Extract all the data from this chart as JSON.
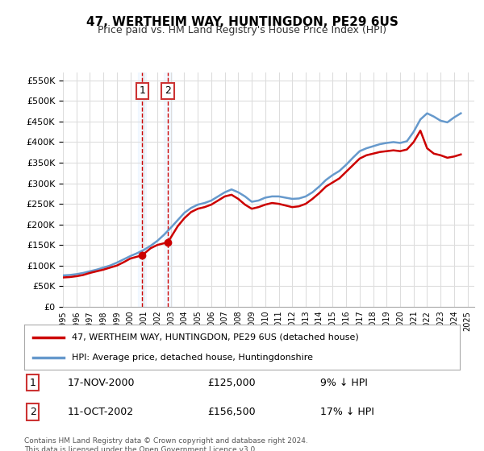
{
  "title": "47, WERTHEIM WAY, HUNTINGDON, PE29 6US",
  "subtitle": "Price paid vs. HM Land Registry's House Price Index (HPI)",
  "ylabel_ticks": [
    0,
    50000,
    100000,
    150000,
    200000,
    250000,
    300000,
    350000,
    400000,
    450000,
    500000,
    550000
  ],
  "ylim": [
    0,
    570000
  ],
  "xlim_start": 1995.0,
  "xlim_end": 2025.5,
  "transactions": [
    {
      "label": "1",
      "date_str": "17-NOV-2000",
      "price": 125000,
      "year": 2000.88,
      "pct": "9%",
      "dir": "↓"
    },
    {
      "label": "2",
      "date_str": "11-OCT-2002",
      "price": 156500,
      "year": 2002.78,
      "pct": "17%",
      "dir": "↓"
    }
  ],
  "legend_entries": [
    {
      "label": "47, WERTHEIM WAY, HUNTINGDON, PE29 6US (detached house)",
      "color": "#cc0000",
      "lw": 2
    },
    {
      "label": "HPI: Average price, detached house, Huntingdonshire",
      "color": "#6699cc",
      "lw": 2
    }
  ],
  "footer": "Contains HM Land Registry data © Crown copyright and database right 2024.\nThis data is licensed under the Open Government Licence v3.0.",
  "background_color": "#ffffff",
  "grid_color": "#dddddd",
  "shade_color": "#ddeeff",
  "marker_color_red": "#cc0000",
  "marker_color_blue": "#6699cc",
  "annotation_box_color": "#cc3333"
}
